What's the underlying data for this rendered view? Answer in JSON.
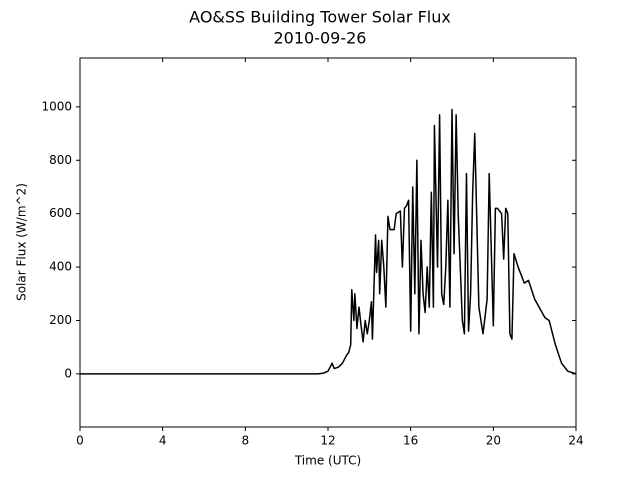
{
  "chart_data": {
    "type": "line",
    "title": "AO&SS Building Tower Solar Flux",
    "subtitle": "2010-09-26",
    "x_label": "Time (UTC)",
    "y_label": "Solar Flux (W/m^2)",
    "xlim": [
      0,
      24
    ],
    "xticks": [
      0,
      4,
      8,
      12,
      16,
      20,
      24
    ],
    "ylim": [
      -199,
      1183
    ],
    "yticks": [
      0,
      200,
      400,
      600,
      800,
      1000
    ],
    "series": [
      {
        "color": "#000000",
        "x": [
          0,
          11.5,
          11.8,
          12.0,
          12.1,
          12.2,
          12.3,
          12.5,
          12.7,
          12.9,
          13.0,
          13.1,
          13.15,
          13.25,
          13.3,
          13.4,
          13.5,
          13.6,
          13.7,
          13.8,
          13.9,
          14.0,
          14.1,
          14.15,
          14.3,
          14.35,
          14.45,
          14.5,
          14.6,
          14.7,
          14.8,
          14.9,
          15.0,
          15.2,
          15.3,
          15.5,
          15.6,
          15.7,
          15.8,
          15.9,
          16.0,
          16.1,
          16.2,
          16.3,
          16.4,
          16.5,
          16.6,
          16.7,
          16.8,
          16.9,
          17.0,
          17.1,
          17.15,
          17.2,
          17.3,
          17.4,
          17.5,
          17.6,
          17.7,
          17.8,
          17.9,
          18.0,
          18.1,
          18.2,
          18.3,
          18.5,
          18.6,
          18.7,
          18.8,
          18.9,
          19.0,
          19.1,
          19.3,
          19.5,
          19.7,
          19.8,
          20.0,
          20.1,
          20.2,
          20.4,
          20.5,
          20.6,
          20.7,
          20.8,
          20.9,
          21.0,
          21.2,
          21.5,
          21.7,
          22.0,
          22.5,
          22.7,
          23.0,
          23.3,
          23.6,
          24.0
        ],
        "values": [
          0,
          0,
          3,
          10,
          25,
          40,
          20,
          25,
          40,
          70,
          80,
          110,
          315,
          200,
          300,
          170,
          250,
          180,
          120,
          200,
          150,
          200,
          270,
          130,
          520,
          380,
          500,
          300,
          500,
          400,
          250,
          590,
          540,
          540,
          600,
          610,
          400,
          620,
          630,
          650,
          160,
          700,
          300,
          800,
          150,
          500,
          300,
          230,
          400,
          250,
          680,
          250,
          930,
          750,
          400,
          970,
          300,
          260,
          400,
          650,
          250,
          990,
          450,
          970,
          600,
          200,
          150,
          750,
          160,
          300,
          680,
          900,
          250,
          150,
          280,
          750,
          180,
          620,
          620,
          600,
          430,
          620,
          600,
          150,
          130,
          450,
          400,
          340,
          350,
          280,
          210,
          200,
          110,
          40,
          10,
          0
        ]
      }
    ]
  }
}
